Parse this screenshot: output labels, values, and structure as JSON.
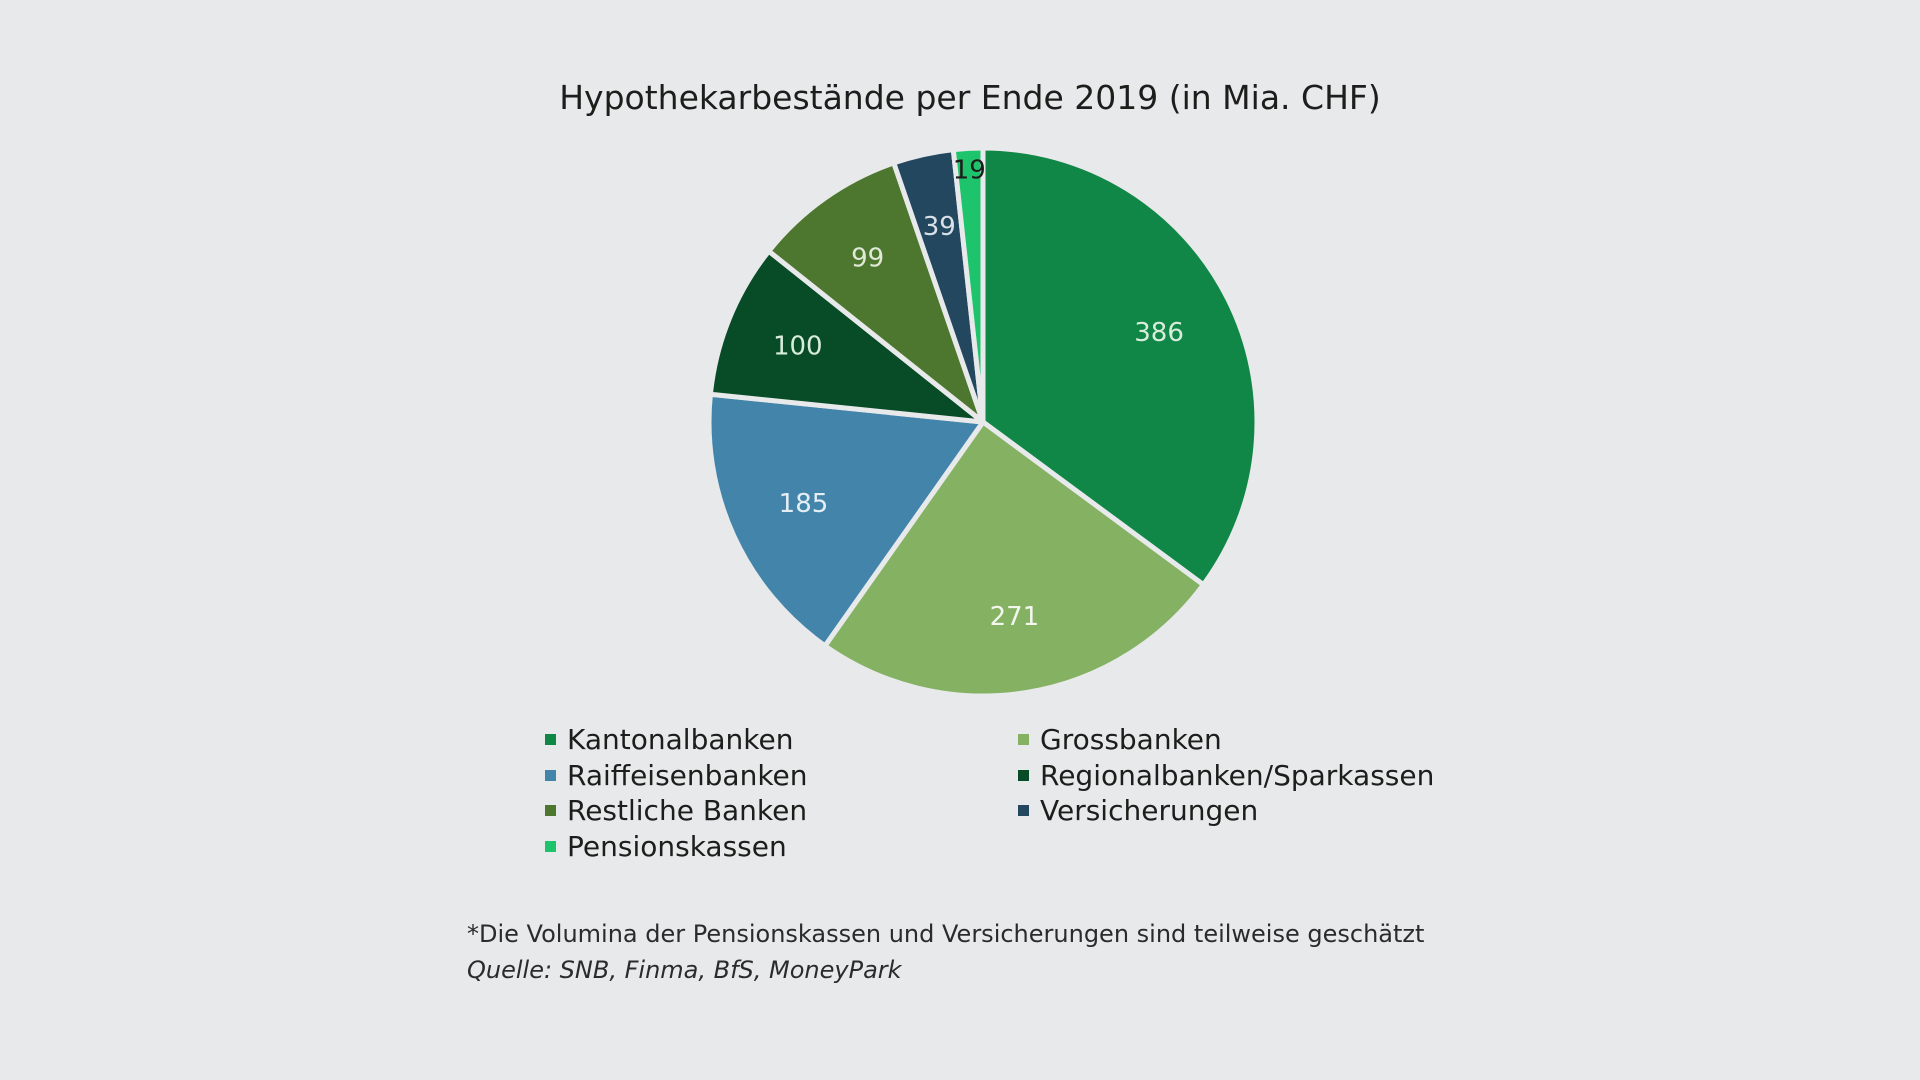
{
  "chart_data": {
    "type": "pie",
    "title": "Hypothekarbestände per Ende 2019 (in Mia. CHF)",
    "categories": [
      "Kantonalbanken",
      "Grossbanken",
      "Raiffeisenbanken",
      "Regionalbanken/Sparkassen",
      "Restliche Banken",
      "Versicherungen",
      "Pensionskassen"
    ],
    "values": [
      386,
      271,
      185,
      100,
      99,
      39,
      19
    ],
    "slice_labels": [
      "386",
      "271",
      "185",
      "100",
      "99",
      "39",
      "19"
    ],
    "colors": [
      "#108747",
      "#84b162",
      "#4385aa",
      "#074b27",
      "#4d772f",
      "#22475e",
      "#1ec46b"
    ],
    "label_colors": [
      "#d8ecdc",
      "#f2f6ec",
      "#e6eef5",
      "#d8ecdc",
      "#dfe9d6",
      "#d8e0e8",
      "#1d1d1b"
    ],
    "slice_order_clockwise_from_top": [
      0,
      1,
      2,
      3,
      4,
      5,
      6
    ],
    "legend_placement": "bottom",
    "grid": false
  },
  "footnote": {
    "note": "*Die Volumina der Pensionskassen und Versicherungen sind teilweise geschätzt",
    "source": "Quelle: SNB, Finma, BfS, MoneyPark"
  }
}
